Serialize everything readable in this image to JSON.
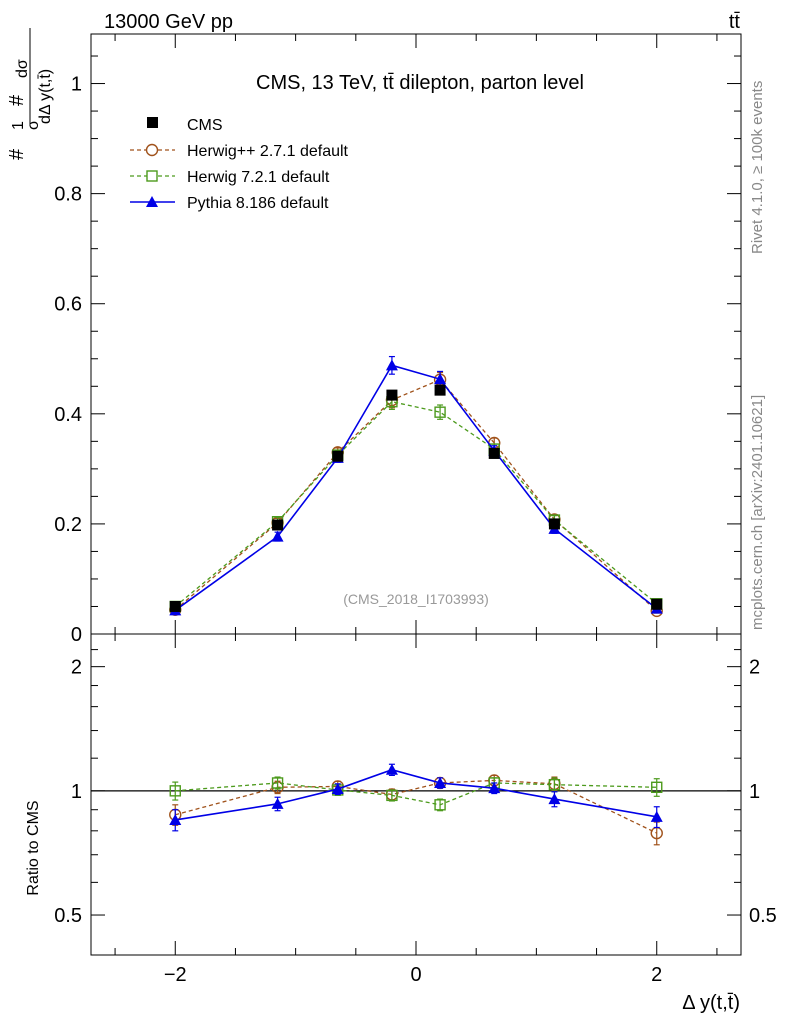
{
  "header": {
    "energy_label": "13000 GeV pp",
    "process_label": "tt̄",
    "plot_title": "CMS, 13 TeV, tt̄ dilepton, parton level",
    "analysis_id": "(CMS_2018_I1703993)",
    "side_rivet": "Rivet 4.1.0, ≥ 100k events",
    "side_mcplots": "mcplots.cern.ch [arXiv:2401.10621]"
  },
  "axes": {
    "xlabel": "Δ y(t,t̄)",
    "ylabel_main": "1/σ dσ/dΔ y(t,t̄)",
    "ylabel_main_prefix": "#",
    "ylabel_main_num": "1",
    "ylabel_main_den": "σ",
    "ylabel_main_frac_num": "dσ",
    "ylabel_main_frac_den": "dΔ y(t,t̄)",
    "ylabel_ratio": "Ratio to CMS",
    "x_ticks": [
      "−2",
      "0",
      "2"
    ],
    "y_ticks_main": [
      "0",
      "0.2",
      "0.4",
      "0.6",
      "0.8",
      "1"
    ],
    "y_ticks_ratio": [
      "0.5",
      "1",
      "2"
    ]
  },
  "legend": {
    "entries": [
      {
        "label": "CMS",
        "color": "#000000"
      },
      {
        "label": "Herwig++ 2.7.1 default",
        "color": "#a0521b"
      },
      {
        "label": "Herwig 7.2.1 default",
        "color": "#4c9a1c"
      },
      {
        "label": "Pythia 8.186 default",
        "color": "#0000e6"
      }
    ]
  },
  "chart_data": [
    {
      "type": "scatter",
      "panel": "main",
      "xlim": [
        -2.7,
        2.7
      ],
      "ylim": [
        0,
        1.09
      ],
      "x": [
        -2.0,
        -1.15,
        -0.65,
        -0.2,
        0.2,
        0.65,
        1.15,
        2.0
      ],
      "series": [
        {
          "name": "CMS",
          "style": "markers",
          "values": [
            0.05,
            0.198,
            0.323,
            0.434,
            0.443,
            0.328,
            0.2,
            0.054
          ]
        },
        {
          "name": "Herwig++ 2.7.1 default",
          "style": "dashed-open-circle",
          "values": [
            0.044,
            0.202,
            0.33,
            0.425,
            0.462,
            0.347,
            0.208,
            0.042
          ]
        },
        {
          "name": "Herwig 7.2.1 default",
          "style": "dashed-open-square",
          "values": [
            0.05,
            0.204,
            0.325,
            0.422,
            0.403,
            0.336,
            0.207,
            0.055
          ]
        },
        {
          "name": "Pythia 8.186 default",
          "style": "solid-triangle",
          "values": [
            0.043,
            0.177,
            0.32,
            0.488,
            0.463,
            0.333,
            0.191,
            0.046
          ]
        }
      ],
      "errors": [
        {
          "name": "Herwig++ 2.7.1 default",
          "values": [
            0.004,
            0.008,
            0.008,
            0.014,
            0.013,
            0.009,
            0.008,
            0.004
          ]
        },
        {
          "name": "Herwig 7.2.1 default",
          "values": [
            0.004,
            0.008,
            0.008,
            0.014,
            0.013,
            0.009,
            0.008,
            0.004
          ]
        },
        {
          "name": "Pythia 8.186 default",
          "values": [
            0.004,
            0.008,
            0.008,
            0.016,
            0.014,
            0.009,
            0.008,
            0.004
          ]
        }
      ]
    },
    {
      "type": "scatter",
      "panel": "ratio",
      "ylabel": "Ratio to CMS",
      "xlim": [
        -2.7,
        2.7
      ],
      "ylim": [
        0.4,
        2.4
      ],
      "yscale": "log",
      "x": [
        -2.0,
        -1.15,
        -0.65,
        -0.2,
        0.2,
        0.65,
        1.15,
        2.0
      ],
      "reference_line": 1,
      "series": [
        {
          "name": "Herwig++ 2.7.1 default",
          "style": "dashed-open-circle",
          "values": [
            0.875,
            1.02,
            1.025,
            0.98,
            1.045,
            1.06,
            1.04,
            0.79
          ]
        },
        {
          "name": "Herwig 7.2.1 default",
          "style": "dashed-open-square",
          "values": [
            1.0,
            1.045,
            1.005,
            0.975,
            0.925,
            1.045,
            1.035,
            1.02
          ]
        },
        {
          "name": "Pythia 8.186 default",
          "style": "solid-triangle",
          "values": [
            0.85,
            0.93,
            1.01,
            1.125,
            1.045,
            1.015,
            0.955,
            0.865
          ]
        }
      ],
      "errors": [
        {
          "name": "Herwig++ 2.7.1 default",
          "values": [
            0.05,
            0.035,
            0.03,
            0.03,
            0.03,
            0.03,
            0.04,
            0.05
          ]
        },
        {
          "name": "Herwig 7.2.1 default",
          "values": [
            0.05,
            0.035,
            0.03,
            0.03,
            0.03,
            0.03,
            0.04,
            0.05
          ]
        },
        {
          "name": "Pythia 8.186 default",
          "values": [
            0.05,
            0.035,
            0.03,
            0.035,
            0.03,
            0.03,
            0.04,
            0.05
          ]
        }
      ]
    }
  ]
}
